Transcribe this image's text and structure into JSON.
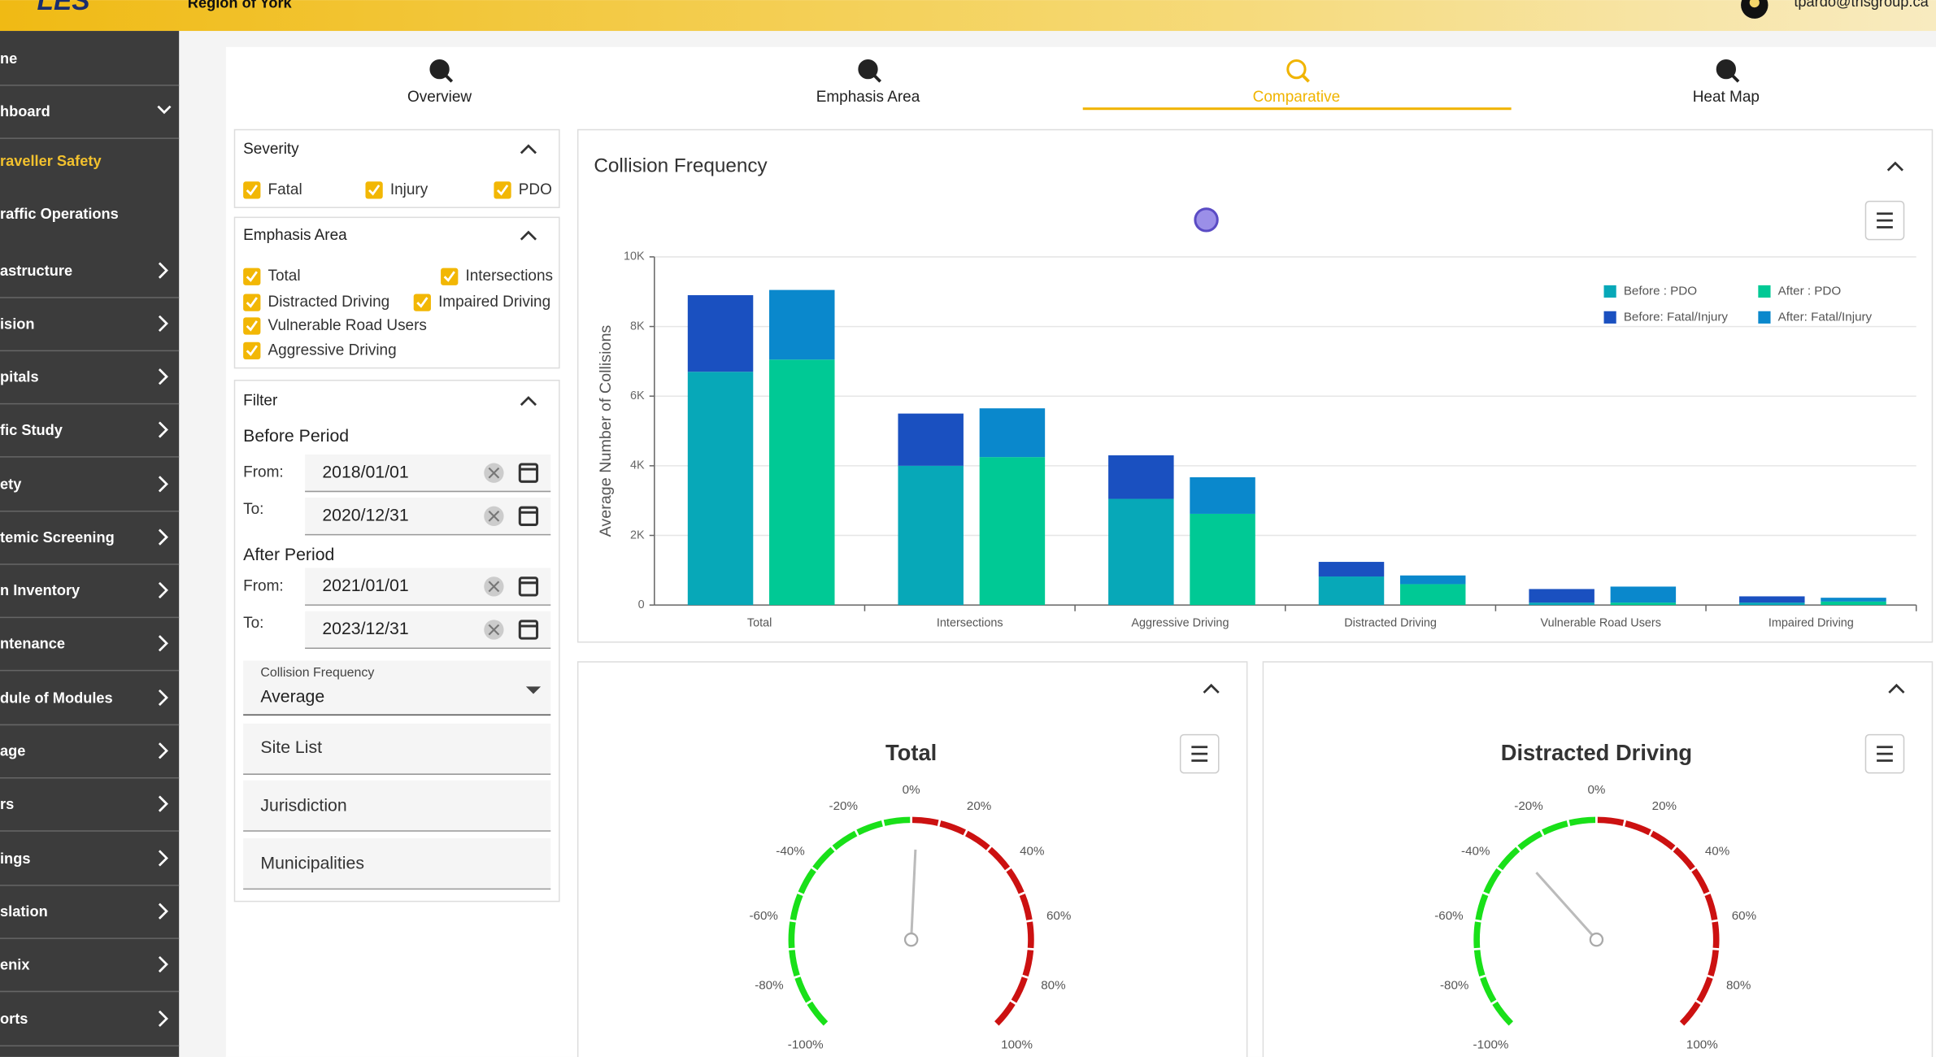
{
  "header": {
    "logo": "LES",
    "region": "Region of York",
    "user": "tpardo@trlsgroup.ca"
  },
  "sidebar": {
    "items": [
      "ne",
      "hboard",
      "raveller Safety",
      "raffic Operations",
      "astructure",
      "ision",
      "pitals",
      "fic Study",
      "ety",
      "temic Screening",
      "n Inventory",
      "ntenance",
      "dule of Modules",
      "age",
      "rs",
      "ings",
      "slation",
      "enix",
      "orts"
    ]
  },
  "tabs": {
    "items": [
      "Overview",
      "Emphasis Area",
      "Comparative",
      "Heat Map"
    ],
    "active": 2
  },
  "filters": {
    "severity": {
      "title": "Severity",
      "options": [
        "Fatal",
        "Injury",
        "PDO"
      ]
    },
    "emphasis": {
      "title": "Emphasis Area",
      "options": [
        "Total",
        "Intersections",
        "Distracted Driving",
        "Impaired Driving",
        "Vulnerable Road Users",
        "Aggressive Driving"
      ]
    },
    "filter": {
      "title": "Filter",
      "before": {
        "title": "Before Period",
        "from_label": "From:",
        "from": "2018/01/01",
        "to_label": "To:",
        "to": "2020/12/31"
      },
      "after": {
        "title": "After Period",
        "from_label": "From:",
        "from": "2021/01/01",
        "to_label": "To:",
        "to": "2023/12/31"
      },
      "frequency_label": "Collision Frequency",
      "frequency": "Average",
      "lists": [
        "Site List",
        "Jurisdiction",
        "Municipalities"
      ]
    }
  },
  "chart_data": [
    {
      "type": "bar",
      "title": "Collision Frequency",
      "y_label": "Average Number of Collisions",
      "categories": [
        "Total",
        "Intersections",
        "Aggressive Driving",
        "Distracted Driving",
        "Vulnerable Road Users",
        "Impaired Driving"
      ],
      "series": [
        {
          "name": "Before : PDO",
          "color": "#07a8b8",
          "values": [
            6700,
            4000,
            3050,
            820,
            70,
            70
          ]
        },
        {
          "name": "Before: Fatal/Injury",
          "color": "#1a50c0",
          "values": [
            2200,
            1500,
            1250,
            420,
            390,
            180
          ]
        },
        {
          "name": "After : PDO",
          "color": "#00c995",
          "values": [
            7050,
            4250,
            2620,
            600,
            70,
            100
          ]
        },
        {
          "name": "After: Fatal/Injury",
          "color": "#0a88cc",
          "values": [
            2000,
            1400,
            1050,
            250,
            460,
            110
          ]
        }
      ],
      "ylim": [
        0,
        10000
      ],
      "yticks": [
        0,
        {
          "value": 2000,
          "label": "2K"
        },
        {
          "value": 4000,
          "label": "4K"
        },
        {
          "value": 6000,
          "label": "6K"
        },
        {
          "value": 8000,
          "label": "8K"
        },
        {
          "value": 10000,
          "label": "10K"
        }
      ],
      "grid": true
    },
    {
      "type": "gauge",
      "title": "Total",
      "value": 2,
      "ylim": [
        -100,
        100
      ],
      "yticks": [
        {
          "value": -100,
          "label": "-100%"
        },
        {
          "value": -80,
          "label": "-80%"
        },
        {
          "value": -60,
          "label": "-60%"
        },
        {
          "value": -40,
          "label": "-40%"
        },
        {
          "value": -20,
          "label": "-20%"
        },
        {
          "value": 0,
          "label": "0%"
        },
        {
          "value": 20,
          "label": "20%"
        },
        {
          "value": 40,
          "label": "40%"
        },
        {
          "value": 60,
          "label": "60%"
        },
        {
          "value": 80,
          "label": "80%"
        },
        {
          "value": 100,
          "label": "100%"
        }
      ]
    },
    {
      "type": "gauge",
      "title": "Distracted Driving",
      "value": -31,
      "ylim": [
        -100,
        100
      ],
      "yticks": [
        {
          "value": -100,
          "label": "-100%"
        },
        {
          "value": -80,
          "label": "-80%"
        },
        {
          "value": -60,
          "label": "-60%"
        },
        {
          "value": -40,
          "label": "-40%"
        },
        {
          "value": -20,
          "label": "-20%"
        },
        {
          "value": 0,
          "label": "0%"
        },
        {
          "value": 20,
          "label": "20%"
        },
        {
          "value": 40,
          "label": "40%"
        },
        {
          "value": 60,
          "label": "60%"
        },
        {
          "value": 80,
          "label": "80%"
        },
        {
          "value": 100,
          "label": "100%"
        }
      ]
    }
  ]
}
